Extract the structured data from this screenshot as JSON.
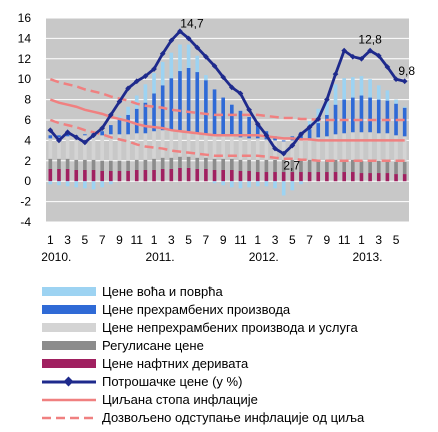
{
  "chart_data": {
    "type": "bar",
    "y_ticks": [
      "16",
      "14",
      "12",
      "10",
      "8",
      "6",
      "4",
      "2",
      "0",
      "-2",
      "-4"
    ],
    "ylim": [
      -4,
      16
    ],
    "x_tick_labels": [
      "1",
      "3",
      "5",
      "7",
      "9",
      "11",
      "1",
      "3",
      "5",
      "7",
      "9",
      "11",
      "1",
      "3",
      "5",
      "7",
      "9",
      "11",
      "1",
      "3",
      "5"
    ],
    "year_labels": [
      "2010.",
      "2011.",
      "2012.",
      "2013."
    ],
    "months": [
      "2010-01",
      "2010-02",
      "2010-03",
      "2010-04",
      "2010-05",
      "2010-06",
      "2010-07",
      "2010-08",
      "2010-09",
      "2010-10",
      "2010-11",
      "2010-12",
      "2011-01",
      "2011-02",
      "2011-03",
      "2011-04",
      "2011-05",
      "2011-06",
      "2011-07",
      "2011-08",
      "2011-09",
      "2011-10",
      "2011-11",
      "2011-12",
      "2012-01",
      "2012-02",
      "2012-03",
      "2012-04",
      "2012-05",
      "2012-06",
      "2012-07",
      "2012-08",
      "2012-09",
      "2012-10",
      "2012-11",
      "2012-12",
      "2013-01",
      "2013-02",
      "2013-03",
      "2013-04",
      "2013-05",
      "2013-06"
    ],
    "annotations": [
      {
        "label": "14,7",
        "month": "2011-04",
        "value": 14.7
      },
      {
        "label": "2,7",
        "month": "2012-04",
        "value": 2.7
      },
      {
        "label": "12,8",
        "month": "2013-02",
        "value": 12.8
      },
      {
        "label": "9,8",
        "month": "2013-06",
        "value": 9.8
      }
    ],
    "series": [
      {
        "name": "Цене воћа  и поврћа",
        "kind": "bar",
        "color": "#9dd3f2",
        "values": [
          -0.3,
          -0.4,
          -0.5,
          -0.6,
          -0.7,
          -0.8,
          -0.6,
          -0.3,
          0.4,
          0.8,
          1.3,
          1.8,
          2.0,
          2.3,
          2.5,
          2.6,
          2.3,
          1.6,
          0.5,
          -0.2,
          -0.4,
          -0.6,
          -0.7,
          -0.6,
          -0.5,
          -0.5,
          -0.7,
          -1.4,
          -0.9,
          -0.3,
          0.8,
          1.4,
          1.7,
          2.0,
          2.1,
          2.0,
          1.9,
          1.8,
          1.4,
          1.0,
          0.4,
          0.1
        ]
      },
      {
        "name": "Цене прехрамбених производа",
        "kind": "bar",
        "color": "#2f6ad6",
        "values": [
          0.3,
          0.2,
          0.2,
          0.1,
          0.1,
          0.2,
          0.4,
          0.9,
          1.4,
          1.9,
          2.4,
          3.0,
          3.7,
          4.4,
          5.1,
          5.8,
          6.2,
          6.0,
          5.3,
          4.5,
          3.7,
          3.1,
          2.6,
          2.1,
          1.5,
          0.8,
          0.4,
          0.1,
          0.4,
          0.7,
          0.9,
          1.4,
          2.1,
          2.9,
          3.3,
          3.4,
          3.6,
          3.4,
          3.3,
          3.2,
          3.1,
          2.8
        ]
      },
      {
        "name": "Цене непрехрамбених производа и услуга",
        "kind": "bar",
        "color": "#d4d4d4",
        "values": [
          2.0,
          2.1,
          2.2,
          2.3,
          2.4,
          2.5,
          2.5,
          2.6,
          2.6,
          2.6,
          2.6,
          2.6,
          2.7,
          2.7,
          2.7,
          2.6,
          2.5,
          2.4,
          2.3,
          2.3,
          2.3,
          2.2,
          2.2,
          2.1,
          2.1,
          2.0,
          1.9,
          1.8,
          1.9,
          2.0,
          2.1,
          2.2,
          2.3,
          2.5,
          2.6,
          2.7,
          2.8,
          2.8,
          2.7,
          2.7,
          2.6,
          2.5
        ]
      },
      {
        "name": "Регулисане цене",
        "kind": "bar",
        "color": "#8c8c8c",
        "values": [
          1.0,
          1.0,
          1.0,
          1.0,
          1.0,
          1.0,
          1.0,
          1.0,
          1.0,
          1.0,
          1.0,
          1.0,
          1.1,
          1.1,
          1.1,
          1.1,
          1.1,
          1.1,
          1.1,
          1.1,
          1.1,
          1.1,
          1.1,
          1.1,
          1.2,
          1.2,
          1.2,
          1.2,
          1.2,
          1.2,
          1.2,
          1.2,
          1.2,
          1.2,
          1.2,
          1.2,
          1.2,
          1.2,
          1.2,
          1.2,
          1.2,
          1.2
        ]
      },
      {
        "name": "Цене нафтних деривата",
        "kind": "bar",
        "color": "#a02060",
        "values": [
          1.2,
          1.2,
          1.2,
          1.1,
          1.1,
          1.1,
          1.0,
          1.0,
          1.0,
          1.0,
          1.1,
          1.1,
          1.1,
          1.2,
          1.2,
          1.3,
          1.3,
          1.2,
          1.2,
          1.1,
          1.1,
          1.1,
          1.0,
          1.0,
          0.9,
          0.9,
          0.9,
          0.9,
          0.9,
          0.9,
          0.9,
          0.9,
          0.9,
          0.9,
          0.9,
          0.9,
          0.8,
          0.8,
          0.8,
          0.8,
          0.7,
          0.7
        ]
      },
      {
        "name": "Потрошачке цене (у %)",
        "kind": "line",
        "color": "#1e2a8c",
        "values": [
          5.0,
          4.0,
          4.8,
          4.3,
          3.8,
          4.5,
          5.2,
          6.5,
          7.8,
          9.1,
          9.8,
          10.3,
          11.0,
          12.5,
          13.8,
          14.7,
          14.0,
          13.1,
          12.2,
          11.3,
          10.2,
          9.2,
          8.6,
          7.0,
          5.6,
          4.5,
          3.2,
          2.7,
          3.5,
          4.6,
          5.3,
          6.1,
          8.0,
          10.5,
          12.8,
          12.2,
          12.0,
          12.8,
          12.3,
          11.2,
          10.0,
          9.8
        ]
      },
      {
        "name": "Циљана стопа инфлације",
        "kind": "line",
        "color": "#f08080",
        "values": [
          8.0,
          7.7,
          7.5,
          7.3,
          7.0,
          6.8,
          6.6,
          6.3,
          6.1,
          5.9,
          5.6,
          5.4,
          5.3,
          5.2,
          5.0,
          4.9,
          4.8,
          4.7,
          4.6,
          4.5,
          4.5,
          4.5,
          4.5,
          4.5,
          4.5,
          4.4,
          4.3,
          4.2,
          4.2,
          4.1,
          4.1,
          4.0,
          4.0,
          4.0,
          4.0,
          4.0,
          4.0,
          4.0,
          4.0,
          4.0,
          4.0,
          4.0
        ]
      },
      {
        "name": "Дозвољено одступање инфлације  од циља",
        "kind": "line",
        "color": "#f08080",
        "dashed": true,
        "upper": [
          10.0,
          9.7,
          9.5,
          9.3,
          9.0,
          8.8,
          8.6,
          8.3,
          8.1,
          7.9,
          7.6,
          7.4,
          7.3,
          7.2,
          7.0,
          6.9,
          6.8,
          6.7,
          6.6,
          6.5,
          6.5,
          6.5,
          6.5,
          6.5,
          6.5,
          6.4,
          6.3,
          6.2,
          6.2,
          6.1,
          6.1,
          6.0,
          6.0,
          6.0,
          6.0,
          6.0,
          6.0,
          6.0,
          6.0,
          6.0,
          6.0,
          6.0
        ],
        "lower": [
          6.0,
          5.7,
          5.5,
          5.3,
          5.0,
          4.8,
          4.6,
          4.3,
          4.1,
          3.9,
          3.6,
          3.4,
          3.3,
          3.2,
          3.0,
          2.9,
          2.8,
          2.7,
          2.6,
          2.5,
          2.5,
          2.5,
          2.5,
          2.5,
          2.5,
          2.4,
          2.3,
          2.2,
          2.2,
          2.1,
          2.1,
          2.0,
          2.0,
          2.0,
          2.0,
          2.0,
          2.0,
          2.0,
          2.0,
          2.0,
          2.0,
          2.0
        ]
      }
    ],
    "legend": [
      {
        "key": "fruit",
        "label": "Цене воћа  и поврћа",
        "color": "#9dd3f2",
        "kind": "bar"
      },
      {
        "key": "food",
        "label": "Цене прехрамбених производа",
        "color": "#2f6ad6",
        "kind": "bar"
      },
      {
        "key": "nonfood",
        "label": "Цене непрехрамбених производа и услуга",
        "color": "#d4d4d4",
        "kind": "bar"
      },
      {
        "key": "regulated",
        "label": "Регулисане цене",
        "color": "#8c8c8c",
        "kind": "bar"
      },
      {
        "key": "oil",
        "label": "Цене нафтних деривата",
        "color": "#a02060",
        "kind": "bar"
      },
      {
        "key": "cpi",
        "label": "Потрошачке цене (у %)",
        "color": "#1e2a8c",
        "kind": "marker-line"
      },
      {
        "key": "target",
        "label": "Циљана стопа инфлације",
        "color": "#f08080",
        "kind": "line"
      },
      {
        "key": "band",
        "label": "Дозвољено одступање инфлације  од циља",
        "color": "#f08080",
        "kind": "dashed-line"
      }
    ],
    "plot_background": "#c8c8c8",
    "grid": true,
    "legend_placement": "bottom"
  }
}
